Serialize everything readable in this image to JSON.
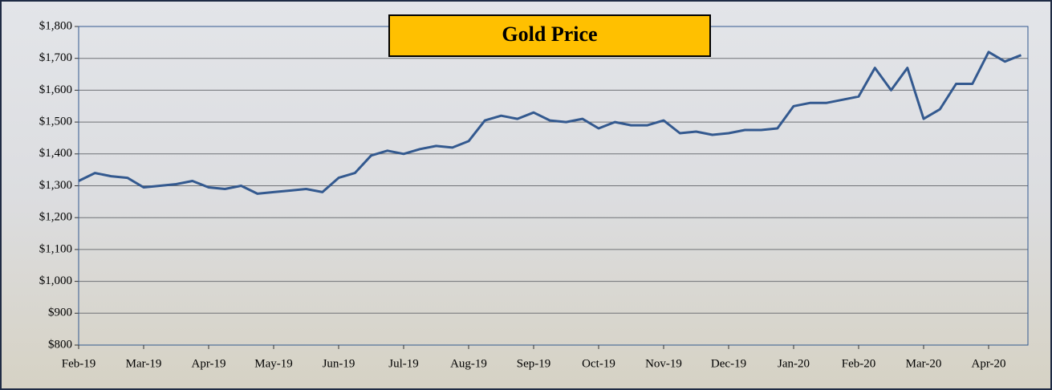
{
  "chart_data": {
    "type": "line",
    "title": "Gold Price",
    "categories": [
      "Feb-19",
      null,
      null,
      null,
      "Mar-19",
      null,
      null,
      null,
      "Apr-19",
      null,
      null,
      null,
      "May-19",
      null,
      null,
      null,
      "Jun-19",
      null,
      null,
      null,
      "Jul-19",
      null,
      null,
      null,
      "Aug-19",
      null,
      null,
      null,
      "Sep-19",
      null,
      null,
      null,
      "Oct-19",
      null,
      null,
      null,
      "Nov-19",
      null,
      null,
      null,
      "Dec-19",
      null,
      null,
      null,
      "Jan-20",
      null,
      null,
      null,
      "Feb-20",
      null,
      null,
      null,
      "Mar-20",
      null,
      null,
      null,
      "Apr-20",
      null,
      null
    ],
    "series": [
      {
        "name": "Gold Price",
        "color": "#33598f",
        "values": [
          1315,
          1340,
          1330,
          1325,
          1295,
          1300,
          1305,
          1315,
          1295,
          1290,
          1300,
          1275,
          1280,
          1285,
          1290,
          1280,
          1325,
          1340,
          1395,
          1410,
          1400,
          1415,
          1425,
          1420,
          1440,
          1505,
          1520,
          1510,
          1530,
          1505,
          1500,
          1510,
          1480,
          1500,
          1490,
          1490,
          1505,
          1465,
          1470,
          1460,
          1465,
          1475,
          1475,
          1480,
          1550,
          1560,
          1560,
          1570,
          1580,
          1670,
          1600,
          1670,
          1510,
          1540,
          1620,
          1620,
          1720,
          1690,
          1710
        ]
      }
    ],
    "ylim": [
      800,
      1800
    ],
    "yticks": [
      {
        "value": 800,
        "label": "$800"
      },
      {
        "value": 900,
        "label": "$900"
      },
      {
        "value": 1000,
        "label": "$1,000"
      },
      {
        "value": 1100,
        "label": "$1,100"
      },
      {
        "value": 1200,
        "label": "$1,200"
      },
      {
        "value": 1300,
        "label": "$1,300"
      },
      {
        "value": 1400,
        "label": "$1,400"
      },
      {
        "value": 1500,
        "label": "$1,500"
      },
      {
        "value": 1600,
        "label": "$1,600"
      },
      {
        "value": 1700,
        "label": "$1,700"
      },
      {
        "value": 1800,
        "label": "$1,800"
      }
    ],
    "grid": true
  }
}
